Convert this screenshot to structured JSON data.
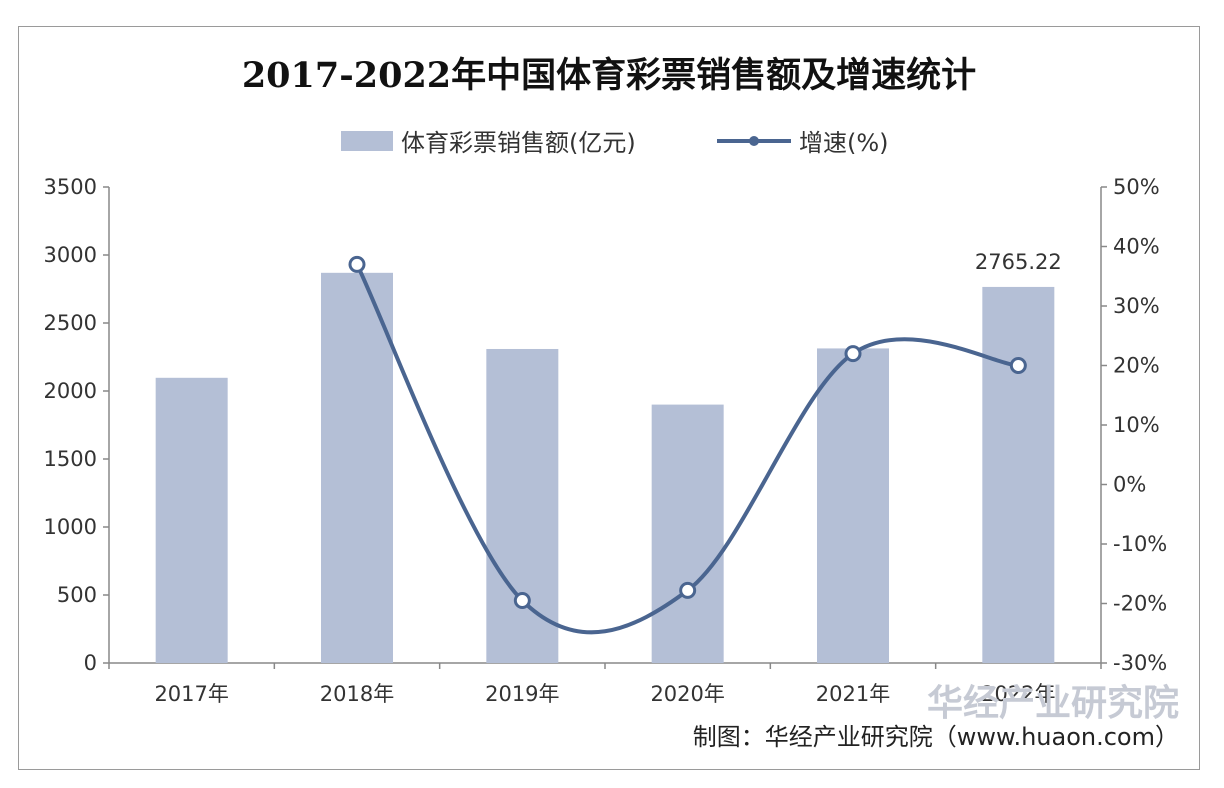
{
  "chart_data": {
    "type": "bar",
    "title": "2017-2022年中国体育彩票销售额及增速统计",
    "categories": [
      "2017年",
      "2018年",
      "2019年",
      "2020年",
      "2021年",
      "2022年"
    ],
    "series": [
      {
        "name": "体育彩票销售额(亿元)",
        "type": "bar",
        "axis": "left",
        "values": [
          2097,
          2869,
          2309,
          1900,
          2313,
          2765.22
        ]
      },
      {
        "name": "增速(%)",
        "type": "line",
        "axis": "right",
        "values": [
          null,
          37,
          -19.5,
          -17.8,
          22,
          20
        ]
      }
    ],
    "y_left": {
      "ylim": [
        0,
        3500
      ],
      "ticks": [
        "0",
        "500",
        "1000",
        "1500",
        "2000",
        "2500",
        "3000",
        "3500"
      ]
    },
    "y_right": {
      "ylim": [
        -30,
        50
      ],
      "ticks": [
        "-30%",
        "-20%",
        "-10%",
        "0%",
        "10%",
        "20%",
        "30%",
        "40%",
        "50%"
      ]
    },
    "data_labels": [
      {
        "category": "2022年",
        "text": "2765.22"
      }
    ],
    "legend_position": "top",
    "grid": false,
    "colors": {
      "bar": "#b4bfd6",
      "line": "#4a6590",
      "marker_fill": "#ffffff"
    }
  },
  "source_text": "制图：华经产业研究院（www.huaon.com）",
  "watermark_text": "华经产业研究院"
}
